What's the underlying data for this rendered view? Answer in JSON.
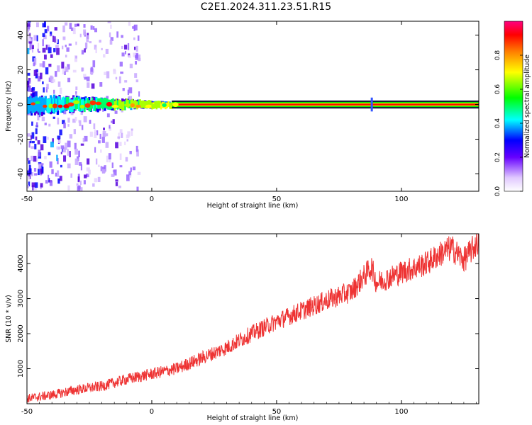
{
  "title": "C2E1.2024.311.23.51.R15",
  "chart_data": [
    {
      "type": "heatmap",
      "xlabel": "Height of straight line (km)",
      "ylabel": "Frequency (Hz)",
      "xlim": [
        -50,
        131
      ],
      "ylim": [
        -50,
        48
      ],
      "xticks": [
        -50,
        0,
        50,
        100
      ],
      "yticks": [
        -40,
        -20,
        0,
        20,
        40
      ],
      "colorbar": {
        "label": "Normalized spectral amplitude",
        "range": [
          0,
          1
        ],
        "ticks": [
          "0.0",
          "0.2",
          "0.4",
          "0.6",
          "0.8"
        ]
      },
      "features": {
        "main_band_frequency_hz": 0,
        "noise_region_x": [
          -50,
          -15
        ],
        "spike_x_km": 88
      },
      "grid": false
    },
    {
      "type": "line",
      "xlabel": "Height of straight line (km)",
      "ylabel": "SNR (10 * v/v)",
      "xlim": [
        -50,
        131
      ],
      "ylim": [
        0,
        4850
      ],
      "xticks": [
        -50,
        0,
        50,
        100
      ],
      "yticks": [
        1000,
        2000,
        3000,
        4000
      ],
      "color": "#ee3333",
      "x": [
        -50,
        -40,
        -30,
        -20,
        -10,
        0,
        10,
        20,
        30,
        40,
        50,
        60,
        70,
        80,
        88,
        90,
        100,
        110,
        115,
        120,
        125,
        131
      ],
      "y": [
        150,
        250,
        400,
        500,
        700,
        850,
        1000,
        1300,
        1600,
        2000,
        2350,
        2650,
        2950,
        3200,
        3900,
        3450,
        3750,
        4000,
        4250,
        4450,
        4100,
        4650
      ],
      "grid": false
    }
  ]
}
